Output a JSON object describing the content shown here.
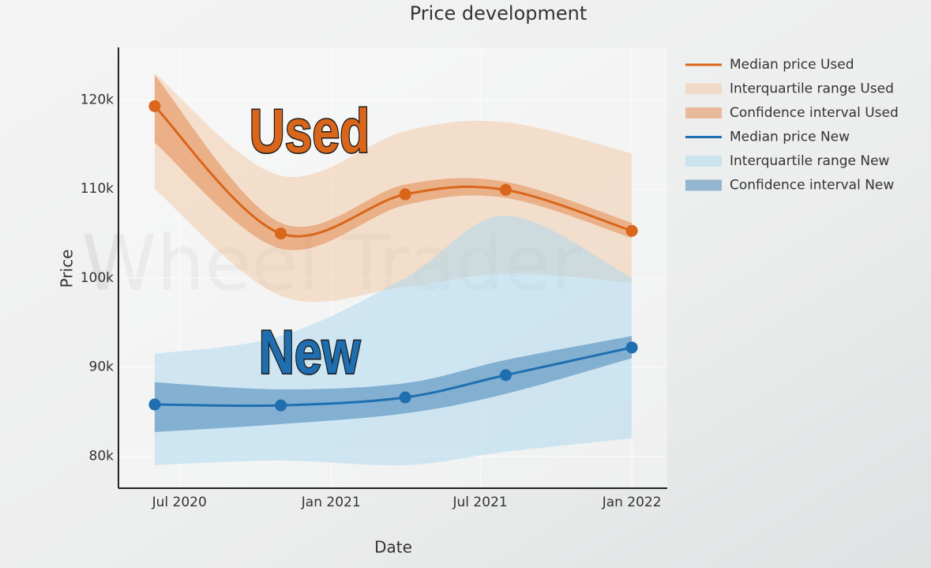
{
  "chart_data": {
    "type": "line",
    "title": "Price development",
    "x_label": "Date",
    "y_label": "Price",
    "watermark": "Wheel Trader",
    "annotations": [
      {
        "text": "Used",
        "color": "#d9661a"
      },
      {
        "text": "New",
        "color": "#1f6fb0"
      }
    ],
    "x": [
      "2020-06",
      "2020-11",
      "2021-04",
      "2021-08",
      "2022-01"
    ],
    "xlim": [
      "2020-04-18",
      "2022-02-13"
    ],
    "xticks": [
      {
        "value": "2020-07",
        "label": "Jul 2020"
      },
      {
        "value": "2021-01",
        "label": "Jan 2021"
      },
      {
        "value": "2021-07",
        "label": "Jul 2021"
      },
      {
        "value": "2022-01",
        "label": "Jan 2022"
      }
    ],
    "ylim": [
      76400,
      125900
    ],
    "yticks": [
      {
        "value": 80000,
        "label": "80k"
      },
      {
        "value": 90000,
        "label": "90k"
      },
      {
        "value": 100000,
        "label": "100k"
      },
      {
        "value": 110000,
        "label": "110k"
      },
      {
        "value": 120000,
        "label": "120k"
      }
    ],
    "grid": true,
    "legend": "right",
    "series": [
      {
        "name": "Median price Used",
        "kind": "line",
        "color": "#d9661a",
        "values": [
          119300,
          105000,
          109400,
          109900,
          105300
        ]
      },
      {
        "name": "Interquartile range Used",
        "kind": "band",
        "color": "rgba(240,180,130,0.35)",
        "lower": [
          110000,
          98000,
          99000,
          100500,
          99500
        ],
        "upper": [
          123000,
          111500,
          116500,
          117500,
          114000
        ]
      },
      {
        "name": "Confidence interval Used",
        "kind": "band",
        "color": "rgba(225,120,50,0.45)",
        "lower": [
          115200,
          103300,
          108200,
          109000,
          104500
        ],
        "upper": [
          122800,
          106200,
          110500,
          110800,
          106200
        ]
      },
      {
        "name": "Median price New",
        "kind": "line",
        "color": "#1f6fb0",
        "values": [
          85800,
          85700,
          86600,
          89100,
          92200
        ]
      },
      {
        "name": "Interquartile range New",
        "kind": "band",
        "color": "rgba(170,215,240,0.5)",
        "lower": [
          79000,
          79500,
          79000,
          80500,
          82000
        ],
        "upper": [
          91500,
          93500,
          100000,
          107000,
          100000
        ]
      },
      {
        "name": "Confidence interval New",
        "kind": "band",
        "color": "rgba(40,110,170,0.45)",
        "lower": [
          82700,
          83600,
          84800,
          87000,
          91000
        ],
        "upper": [
          88300,
          87500,
          88200,
          90800,
          93500
        ]
      }
    ]
  }
}
